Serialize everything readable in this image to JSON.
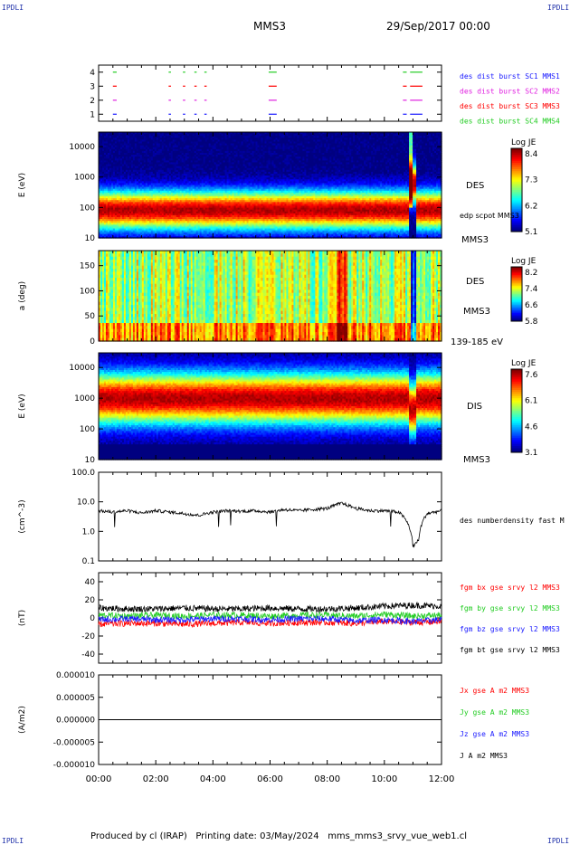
{
  "header": {
    "corner_label": "IPDLI",
    "spacecraft": "MMS3",
    "date": "29/Sep/2017 00:00"
  },
  "footer": "Produced by cl (IRAP)   Printing date: 03/May/2024   mms_mms3_srvy_vue_web1.cl",
  "chart_data": [
    {
      "type": "scatter",
      "panel": "availability",
      "ylim": [
        0.5,
        4.5
      ],
      "yticks": [
        "1",
        "2",
        "3",
        "4"
      ],
      "series": [
        {
          "name": "des dist burst SC1 MMS1",
          "color": "#1a1aff",
          "y": 1
        },
        {
          "name": "des dist burst SC2 MMS2",
          "color": "#e020e0",
          "y": 2
        },
        {
          "name": "des dist burst SC3 MMS3",
          "color": "#ff0000",
          "y": 3
        },
        {
          "name": "des dist burst SC4 MMS4",
          "color": "#22cc22",
          "y": 4
        }
      ],
      "intervals_hours": [
        [
          0.5,
          0.6
        ],
        [
          2.45,
          2.5
        ],
        [
          2.95,
          3.0
        ],
        [
          3.35,
          3.4
        ],
        [
          3.7,
          3.75
        ],
        [
          5.95,
          6.2
        ],
        [
          10.65,
          10.75
        ],
        [
          10.9,
          11.3
        ]
      ]
    },
    {
      "type": "heatmap",
      "panel": "electron spectrogram",
      "ylabel": "E (eV)",
      "log_y": true,
      "ylim": [
        10,
        30000
      ],
      "yticks": [
        "10",
        "100",
        "1000",
        "10000"
      ],
      "right_labels": [
        "DES",
        "edp scpot MMS3",
        "MMS3"
      ],
      "colorbar": {
        "title": "Log JE",
        "ticks": [
          "8.4",
          "7.3",
          "6.2",
          "5.1"
        ]
      }
    },
    {
      "type": "heatmap",
      "panel": "electron pitch angle",
      "ylabel": "a (deg)",
      "ylim": [
        0,
        180
      ],
      "yticks": [
        "0",
        "50",
        "100",
        "150"
      ],
      "right_labels": [
        "DES",
        "MMS3",
        "139-185 eV"
      ],
      "colorbar": {
        "title": "Log JE",
        "ticks": [
          "8.2",
          "7.4",
          "6.6",
          "5.8"
        ]
      }
    },
    {
      "type": "heatmap",
      "panel": "ion spectrogram",
      "ylabel": "E (eV)",
      "log_y": true,
      "ylim": [
        10,
        30000
      ],
      "yticks": [
        "10",
        "100",
        "1000",
        "10000"
      ],
      "right_labels": [
        "DIS",
        "MMS3"
      ],
      "colorbar": {
        "title": "Log JE",
        "ticks": [
          "7.6",
          "6.1",
          "4.6",
          "3.1"
        ]
      }
    },
    {
      "type": "line",
      "panel": "density",
      "ylabel": "(cm^-3)",
      "log_y": true,
      "ylim": [
        0.1,
        100
      ],
      "yticks": [
        "0.1",
        "1.0",
        "10.0",
        "100.0"
      ],
      "series": [
        {
          "name": "des numberdensity fast M",
          "color": "#000000",
          "x": [
            0,
            0.5,
            1,
            1.5,
            2,
            2.5,
            3,
            3.5,
            4,
            4.5,
            5,
            5.5,
            6,
            6.5,
            7,
            7.5,
            8,
            8.5,
            9,
            9.5,
            10,
            10.5,
            10.8,
            11,
            11.2,
            11.5,
            12
          ],
          "y": [
            5,
            4.5,
            5,
            4.2,
            5,
            4.5,
            4,
            3.5,
            4.5,
            5,
            4.8,
            5,
            4.5,
            5.5,
            5,
            5.5,
            6,
            9,
            6,
            5,
            5,
            4.5,
            2,
            0.3,
            0.5,
            4,
            5
          ]
        }
      ]
    },
    {
      "type": "line",
      "panel": "magnetic field",
      "ylabel": "(nT)",
      "ylim": [
        -50,
        50
      ],
      "yticks": [
        "-40",
        "-20",
        "0",
        "20",
        "40"
      ],
      "series": [
        {
          "name": "fgm bx gse srvy l2 MMS3",
          "color": "#ff0000",
          "x": [
            0,
            1,
            2,
            3,
            4,
            5,
            6,
            7,
            8,
            9,
            10,
            11,
            12
          ],
          "y": [
            -7,
            -6,
            -6,
            -7,
            -6,
            -5,
            -6,
            -5,
            -5,
            -6,
            -4,
            -5,
            -4
          ]
        },
        {
          "name": "fgm by gse srvy l2 MMS3",
          "color": "#22cc22",
          "x": [
            0,
            1,
            2,
            3,
            4,
            5,
            6,
            7,
            8,
            9,
            10,
            11,
            12
          ],
          "y": [
            3,
            2,
            3,
            2,
            3,
            3,
            2,
            3,
            3,
            2,
            4,
            2,
            3
          ]
        },
        {
          "name": "fgm bz gse srvy l2 MMS3",
          "color": "#1a1aff",
          "x": [
            0,
            1,
            2,
            3,
            4,
            5,
            6,
            7,
            8,
            9,
            10,
            11,
            12
          ],
          "y": [
            -2,
            -1,
            -2,
            -2,
            -1,
            -1,
            -2,
            -1,
            -1,
            -3,
            -2,
            -4,
            -2
          ]
        },
        {
          "name": "fgm bt gse srvy l2 MMS3",
          "color": "#000000",
          "x": [
            0,
            1,
            2,
            3,
            4,
            5,
            6,
            7,
            8,
            9,
            10,
            11,
            12
          ],
          "y": [
            11,
            10,
            10,
            11,
            10,
            10,
            11,
            10,
            10,
            11,
            13,
            14,
            13
          ]
        }
      ]
    },
    {
      "type": "line",
      "panel": "current density",
      "ylabel": "(A/m2)",
      "ylim": [
        -1e-05,
        1e-05
      ],
      "yticks": [
        "-0.000010",
        "-0.000005",
        "0.000000",
        "0.000005",
        "0.000010"
      ],
      "series": [
        {
          "name": "Jx gse A m2 MMS3",
          "color": "#ff0000",
          "x": [
            0,
            12
          ],
          "y": [
            0,
            0
          ]
        },
        {
          "name": "Jy gse A m2 MMS3",
          "color": "#22cc22",
          "x": [
            0,
            12
          ],
          "y": [
            0,
            0
          ]
        },
        {
          "name": "Jz gse A m2 MMS3",
          "color": "#1a1aff",
          "x": [
            0,
            12
          ],
          "y": [
            0,
            0
          ]
        },
        {
          "name": "J A m2 MMS3",
          "color": "#000000",
          "x": [
            0,
            12
          ],
          "y": [
            0,
            0
          ]
        }
      ]
    }
  ],
  "time_axis": {
    "range_hours": [
      0,
      12
    ],
    "ticks": [
      "00:00",
      "02:00",
      "04:00",
      "06:00",
      "08:00",
      "10:00",
      "12:00"
    ]
  }
}
